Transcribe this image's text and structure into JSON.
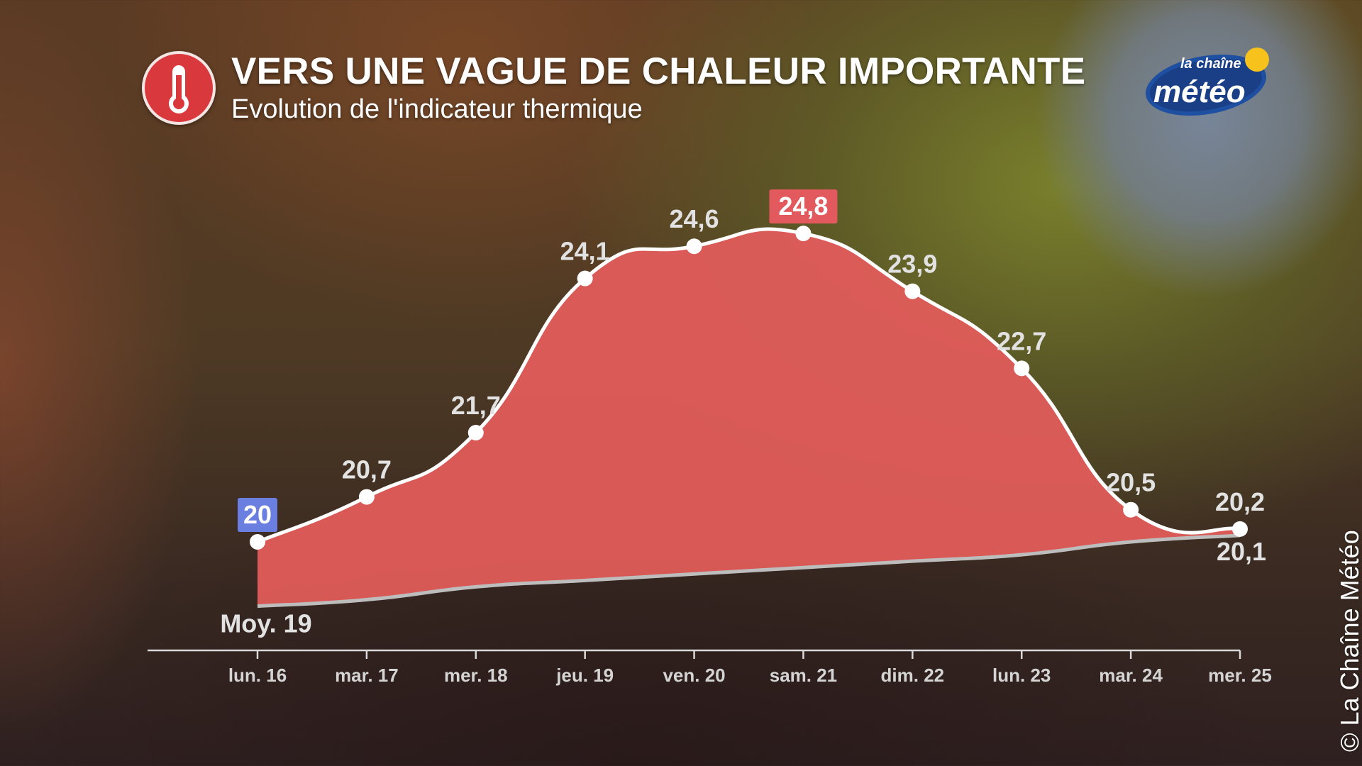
{
  "header": {
    "title": "VERS UNE VAGUE DE CHALEUR IMPORTANTE",
    "subtitle": "Evolution de l'indicateur thermique",
    "icon": "thermometer-icon",
    "icon_color": "#d9383c"
  },
  "logo": {
    "line1": "la chaîne",
    "line2": "météo"
  },
  "credit": "© La Chaîne Météo",
  "colors": {
    "area_fill": "#e05c5a",
    "series_line": "#ffffff",
    "average_line": "#bdbdbd",
    "min_badge": "#6a7fe0",
    "max_badge": "#e2595e"
  },
  "chart_data": {
    "type": "area",
    "categories": [
      "lun. 16",
      "mar. 17",
      "mer. 18",
      "jeu. 19",
      "ven. 20",
      "sam. 21",
      "dim. 22",
      "lun. 23",
      "mar. 24",
      "mer. 25"
    ],
    "series": [
      {
        "values": [
          20,
          20.7,
          21.7,
          24.1,
          24.6,
          24.8,
          23.9,
          22.7,
          20.5,
          20.2
        ]
      },
      {
        "values": [
          19,
          19.1,
          19.3,
          19.4,
          19.5,
          19.6,
          19.7,
          19.8,
          20.0,
          20.1
        ]
      }
    ],
    "value_labels": [
      "20",
      "20,7",
      "21,7",
      "24,1",
      "24,6",
      "24,8",
      "23,9",
      "22,7",
      "20,5",
      "20,2"
    ],
    "average_start_label": "Moy. 19",
    "average_end_label": "20,1",
    "min_highlight_index": 0,
    "max_highlight_index": 5,
    "y_axis_visible": false,
    "grid": false
  }
}
